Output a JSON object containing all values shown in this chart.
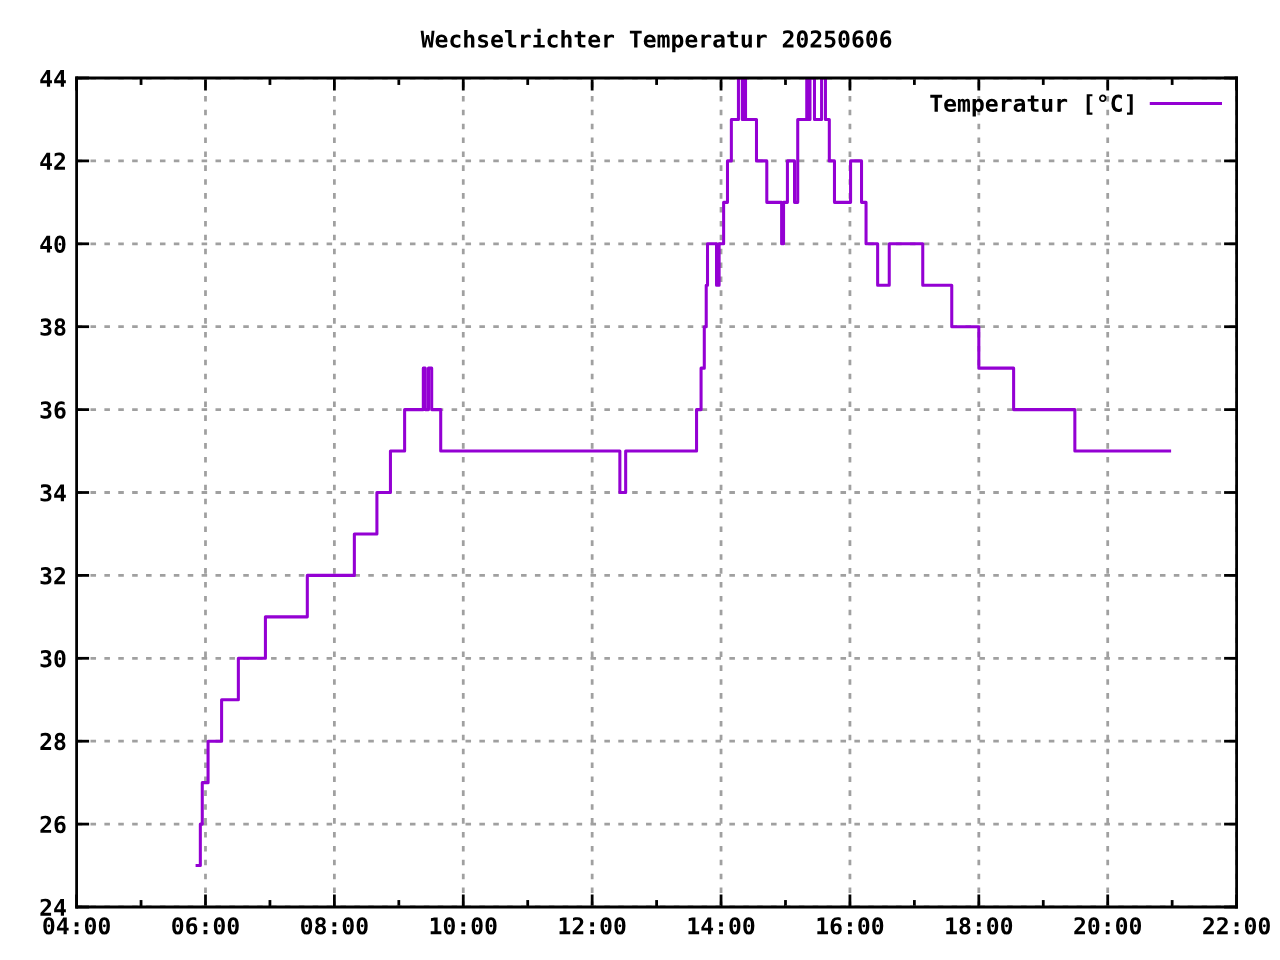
{
  "chart_data": {
    "type": "step",
    "title": "Wechselrichter Temperatur 20250606",
    "x": [
      5.87,
      5.92,
      5.95,
      6.04,
      6.25,
      6.51,
      6.93,
      7.58,
      8.31,
      8.66,
      8.87,
      9.09,
      9.38,
      9.41,
      9.46,
      9.51,
      9.65,
      12.43,
      12.52,
      13.62,
      13.69,
      13.74,
      13.77,
      13.79,
      13.93,
      13.97,
      14.04,
      14.1,
      14.16,
      14.27,
      14.33,
      14.35,
      14.38,
      14.55,
      14.71,
      14.94,
      14.97,
      15.03,
      15.14,
      15.19,
      15.33,
      15.36,
      15.38,
      15.45,
      15.56,
      15.62,
      15.68,
      15.76,
      16.01,
      16.18,
      16.25,
      16.43,
      16.61,
      17.13,
      17.58,
      18.0,
      18.54,
      19.49,
      20.96
    ],
    "series": [
      {
        "name": "Temperatur [°C]",
        "color": "#9400d3",
        "values": [
          25,
          26,
          27,
          28,
          29,
          30,
          31,
          32,
          33,
          34,
          35,
          36,
          37,
          36,
          37,
          36,
          35,
          34,
          35,
          36,
          37,
          38,
          39,
          40,
          39,
          40,
          41,
          42,
          43,
          44,
          43,
          44,
          43,
          42,
          41,
          40,
          41,
          42,
          41,
          43,
          44,
          43,
          44,
          43,
          44,
          43,
          42,
          41,
          42,
          41,
          40,
          39,
          40,
          39,
          38,
          37,
          36,
          35,
          35
        ]
      }
    ],
    "xlim": [
      4,
      22
    ],
    "xticks": [
      {
        "value": 4,
        "label": "04:00"
      },
      {
        "value": 5,
        "label": null
      },
      {
        "value": 6,
        "label": "06:00"
      },
      {
        "value": 7,
        "label": null
      },
      {
        "value": 8,
        "label": "08:00"
      },
      {
        "value": 9,
        "label": null
      },
      {
        "value": 10,
        "label": "10:00"
      },
      {
        "value": 11,
        "label": null
      },
      {
        "value": 12,
        "label": "12:00"
      },
      {
        "value": 13,
        "label": null
      },
      {
        "value": 14,
        "label": "14:00"
      },
      {
        "value": 15,
        "label": null
      },
      {
        "value": 16,
        "label": "16:00"
      },
      {
        "value": 17,
        "label": null
      },
      {
        "value": 18,
        "label": "18:00"
      },
      {
        "value": 19,
        "label": null
      },
      {
        "value": 20,
        "label": "20:00"
      },
      {
        "value": 21,
        "label": null
      },
      {
        "value": 22,
        "label": "22:00"
      }
    ],
    "ylim": [
      24,
      44
    ],
    "yticks": [
      24,
      26,
      28,
      30,
      32,
      34,
      36,
      38,
      40,
      42,
      44
    ],
    "grid": true,
    "legend": "top right"
  }
}
